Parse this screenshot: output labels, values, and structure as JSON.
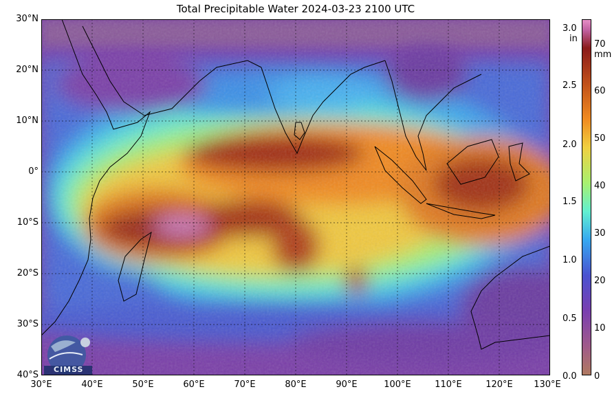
{
  "title": "Total Precipitable Water  2024-03-23 2100 UTC",
  "map": {
    "lon_range": [
      30,
      130
    ],
    "lat_range": [
      -40,
      30
    ],
    "lat_labels": [
      "30°N",
      "20°N",
      "10°N",
      "0°",
      "10°S",
      "20°S",
      "30°S",
      "40°S"
    ],
    "lon_labels": [
      "30°E",
      "40°E",
      "50°E",
      "60°E",
      "70°E",
      "80°E",
      "90°E",
      "100°E",
      "110°E",
      "120°E",
      "130°E"
    ],
    "grid": true
  },
  "colorbar": {
    "in_unit": "in",
    "mm_unit": "mm",
    "in_ticks": [
      "3.0",
      "2.5",
      "2.0",
      "1.5",
      "1.0",
      "0.5",
      "0.0"
    ],
    "mm_ticks": [
      "70",
      "60",
      "50",
      "40",
      "30",
      "20",
      "10",
      "0"
    ],
    "colors": [
      "#b07a60",
      "#8f3a9f",
      "#4a52d0",
      "#36a8f0",
      "#62f0d0",
      "#a8f070",
      "#f0d040",
      "#f08a20",
      "#c0501a",
      "#8a1a1a",
      "#e890c8"
    ]
  },
  "logo": {
    "text": "CIMSS"
  }
}
